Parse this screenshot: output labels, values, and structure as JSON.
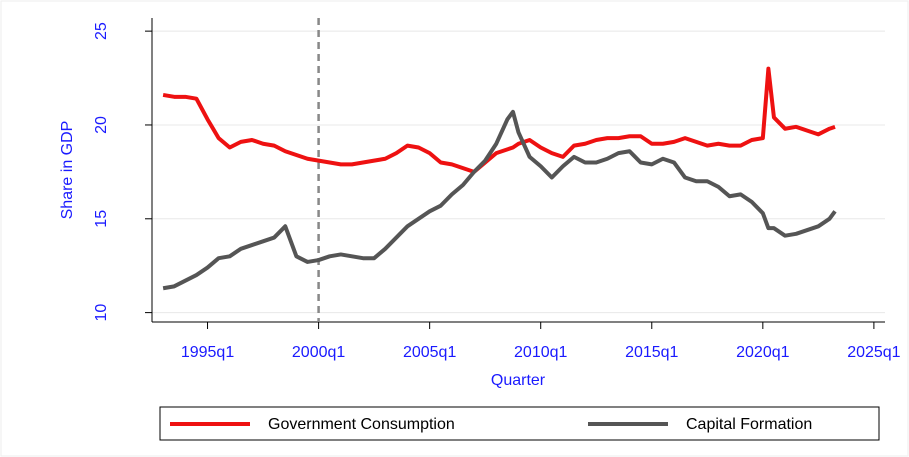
{
  "chart_data": {
    "type": "line",
    "ylabel": "Share in GDP",
    "xlabel": "Quarter",
    "x": [
      "1993q1",
      "1993q3",
      "1994q1",
      "1994q3",
      "1995q1",
      "1995q3",
      "1996q1",
      "1996q3",
      "1997q1",
      "1997q3",
      "1998q1",
      "1998q3",
      "1999q1",
      "1999q3",
      "2000q1",
      "2000q3",
      "2001q1",
      "2001q3",
      "2002q1",
      "2002q3",
      "2003q1",
      "2003q3",
      "2004q1",
      "2004q3",
      "2005q1",
      "2005q3",
      "2006q1",
      "2006q3",
      "2007q1",
      "2007q3",
      "2008q1",
      "2008q3",
      "2008q4",
      "2009q1",
      "2009q3",
      "2010q1",
      "2010q3",
      "2011q1",
      "2011q3",
      "2012q1",
      "2012q3",
      "2013q1",
      "2013q3",
      "2014q1",
      "2014q3",
      "2015q1",
      "2015q3",
      "2016q1",
      "2016q3",
      "2017q1",
      "2017q3",
      "2018q1",
      "2018q3",
      "2019q1",
      "2019q3",
      "2020q1",
      "2020q2",
      "2020q3",
      "2021q1",
      "2021q3",
      "2022q1",
      "2022q3",
      "2023q1",
      "2023q2"
    ],
    "series": [
      {
        "name": "Government Consumption",
        "color": "#ee1111",
        "values": [
          21.6,
          21.5,
          21.5,
          21.4,
          20.3,
          19.3,
          18.8,
          19.1,
          19.2,
          19.0,
          18.9,
          18.6,
          18.4,
          18.2,
          18.1,
          18.0,
          17.9,
          17.9,
          18.0,
          18.1,
          18.2,
          18.5,
          18.9,
          18.8,
          18.5,
          18.0,
          17.9,
          17.7,
          17.5,
          18.0,
          18.5,
          18.7,
          18.8,
          19.0,
          19.2,
          18.8,
          18.5,
          18.3,
          18.9,
          19.0,
          19.2,
          19.3,
          19.3,
          19.4,
          19.4,
          19.0,
          19.0,
          19.1,
          19.3,
          19.1,
          18.9,
          19.0,
          18.9,
          18.9,
          19.2,
          19.3,
          23.0,
          20.4,
          19.8,
          19.9,
          19.7,
          19.5,
          19.8,
          19.9
        ]
      },
      {
        "name": "Capital Formation",
        "color": "#555555",
        "values": [
          11.3,
          11.4,
          11.7,
          12.0,
          12.4,
          12.9,
          13.0,
          13.4,
          13.6,
          13.8,
          14.0,
          14.6,
          13.0,
          12.7,
          12.8,
          13.0,
          13.1,
          13.0,
          12.9,
          12.9,
          13.4,
          14.0,
          14.6,
          15.0,
          15.4,
          15.7,
          16.3,
          16.8,
          17.5,
          18.1,
          19.0,
          20.3,
          20.7,
          19.6,
          18.3,
          17.8,
          17.2,
          17.8,
          18.3,
          18.0,
          18.0,
          18.2,
          18.5,
          18.6,
          18.0,
          17.9,
          18.2,
          18.0,
          17.2,
          17.0,
          17.0,
          16.7,
          16.2,
          16.3,
          15.9,
          15.3,
          14.5,
          14.5,
          14.1,
          14.2,
          14.4,
          14.6,
          15.0,
          15.4
        ]
      }
    ],
    "xlim": [
      "1992q3",
      "2025q3"
    ],
    "xticks": [
      "1995q1",
      "2000q1",
      "2005q1",
      "2010q1",
      "2015q1",
      "2020q1",
      "2025q1"
    ],
    "ylim": [
      9.5,
      25.7
    ],
    "yticks": [
      10,
      15,
      20,
      25
    ],
    "grid": true,
    "vline": "2000q1",
    "legend": "bottom"
  }
}
